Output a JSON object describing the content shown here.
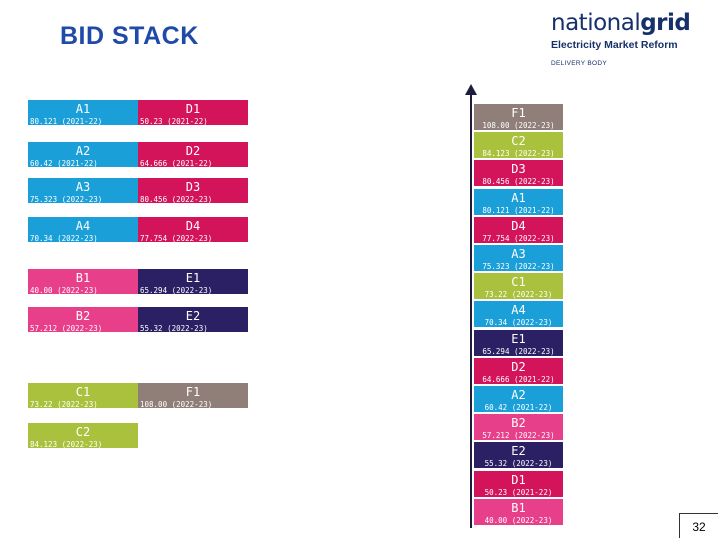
{
  "title": "BID STACK",
  "logo": {
    "brand_regular": "national",
    "brand_bold": "grid",
    "subtitle": "Electricity Market Reform",
    "tagline": "DELIVERY BODY"
  },
  "page_number": "32",
  "colors": {
    "A": "#1a9fd9",
    "B": "#e83f8b",
    "C": "#a9c13d",
    "D": "#d4145a",
    "E": "#2b2063",
    "F": "#8f7f78",
    "axis": "#1e1e3c"
  },
  "left_blocks": [
    {
      "label": "A1",
      "value": "80.121 (2021-22)",
      "group": "A"
    },
    {
      "label": "A2",
      "value": "60.42 (2021-22)",
      "group": "A"
    },
    {
      "label": "A3",
      "value": "75.323 (2022-23)",
      "group": "A"
    },
    {
      "label": "A4",
      "value": "70.34 (2022-23)",
      "group": "A"
    },
    {
      "label": "B1",
      "value": "40.00 (2022-23)",
      "group": "B"
    },
    {
      "label": "B2",
      "value": "57.212 (2022-23)",
      "group": "B"
    },
    {
      "label": "C1",
      "value": "73.22 (2022-23)",
      "group": "C"
    },
    {
      "label": "C2",
      "value": "84.123 (2022-23)",
      "group": "C"
    },
    {
      "label": "D1",
      "value": "50.23 (2021-22)",
      "group": "D"
    },
    {
      "label": "D2",
      "value": "64.666 (2021-22)",
      "group": "D"
    },
    {
      "label": "D3",
      "value": "80.456 (2022-23)",
      "group": "D"
    },
    {
      "label": "D4",
      "value": "77.754 (2022-23)",
      "group": "D"
    },
    {
      "label": "E1",
      "value": "65.294 (2022-23)",
      "group": "E"
    },
    {
      "label": "E2",
      "value": "55.32 (2022-23)",
      "group": "E"
    },
    {
      "label": "F1",
      "value": "108.00 (2022-23)",
      "group": "F"
    }
  ],
  "stack": [
    {
      "label": "F1",
      "value": "108.00 (2022-23)",
      "group": "F"
    },
    {
      "label": "C2",
      "value": "84.123 (2022-23)",
      "group": "C"
    },
    {
      "label": "D3",
      "value": "80.456 (2022-23)",
      "group": "D"
    },
    {
      "label": "A1",
      "value": "80.121 (2021-22)",
      "group": "A"
    },
    {
      "label": "D4",
      "value": "77.754 (2022-23)",
      "group": "D"
    },
    {
      "label": "A3",
      "value": "75.323 (2022-23)",
      "group": "A"
    },
    {
      "label": "C1",
      "value": "73.22 (2022-23)",
      "group": "C"
    },
    {
      "label": "A4",
      "value": "70.34 (2022-23)",
      "group": "A"
    },
    {
      "label": "E1",
      "value": "65.294 (2022-23)",
      "group": "E"
    },
    {
      "label": "D2",
      "value": "64.666 (2021-22)",
      "group": "D"
    },
    {
      "label": "A2",
      "value": "60.42 (2021-22)",
      "group": "A"
    },
    {
      "label": "B2",
      "value": "57.212 (2022-23)",
      "group": "B"
    },
    {
      "label": "E2",
      "value": "55.32 (2022-23)",
      "group": "E"
    },
    {
      "label": "D1",
      "value": "50.23 (2021-22)",
      "group": "D"
    },
    {
      "label": "B1",
      "value": "40.00 (2022-23)",
      "group": "B"
    }
  ]
}
